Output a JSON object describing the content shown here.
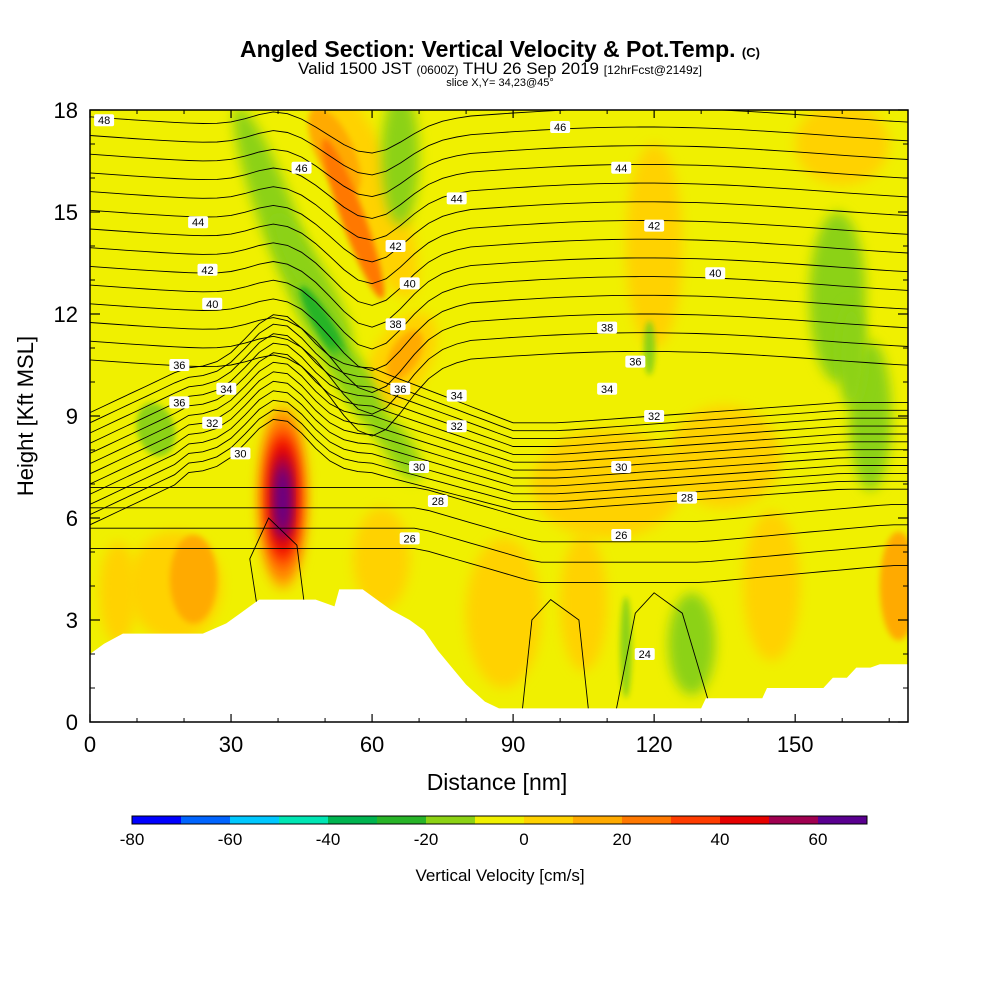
{
  "header": {
    "title": "Angled Section: Vertical Velocity & Pot.Temp.",
    "title_tag": "(C)",
    "valid_a": "Valid 1500 JST",
    "valid_b": "(0600Z)",
    "valid_c": "THU 26 Sep 2019",
    "valid_d": "[12hrFcst@2149z]",
    "slice": "slice X,Y= 34,23@45°"
  },
  "chart_data": {
    "type": "heatmap",
    "xlabel": "Distance [nm]",
    "ylabel": "Height [Kft MSL]",
    "xlim": [
      0,
      174
    ],
    "ylim": [
      0,
      18
    ],
    "x_ticks": [
      0,
      30,
      60,
      90,
      120,
      150
    ],
    "y_ticks": [
      0,
      3,
      6,
      9,
      12,
      15,
      18
    ],
    "colorbar": {
      "label": "Vertical Velocity [cm/s]",
      "ticks": [
        "-80",
        "-60",
        "-40",
        "-20",
        "0",
        "20",
        "40",
        "60"
      ],
      "levels": [
        -80,
        -70,
        -60,
        -50,
        -40,
        -30,
        -20,
        -10,
        0,
        10,
        20,
        30,
        40,
        50,
        60,
        70
      ],
      "colors": [
        "#0000ff",
        "#0064ff",
        "#00c8ff",
        "#00e6b4",
        "#00b450",
        "#28b428",
        "#8cd214",
        "#f0f000",
        "#ffd200",
        "#ffaa00",
        "#ff7800",
        "#ff3c00",
        "#e60000",
        "#a00050",
        "#5a0090"
      ]
    },
    "vv_features": [
      {
        "kind": "updraft",
        "x": 41,
        "z": 6.6,
        "peak_cm_s": 65
      },
      {
        "kind": "downdraft",
        "x": 55,
        "z": 10.6,
        "min_cm_s": -30
      },
      {
        "kind": "downdraft",
        "x": 39,
        "z": 15.5,
        "min_cm_s": -20
      },
      {
        "kind": "downdraft",
        "x": 162,
        "z": 10.5,
        "min_cm_s": -20
      },
      {
        "kind": "downdraft",
        "x": 126,
        "z": 2.3,
        "min_cm_s": -20
      },
      {
        "kind": "updraft",
        "x": 58,
        "z": 16.5,
        "peak_cm_s": 25
      }
    ],
    "theta_labels": [
      {
        "v": "48",
        "x": 3,
        "z": 17.7
      },
      {
        "v": "46",
        "x": 45,
        "z": 16.3
      },
      {
        "v": "46",
        "x": 100,
        "z": 17.5
      },
      {
        "v": "44",
        "x": 23,
        "z": 14.7
      },
      {
        "v": "44",
        "x": 78,
        "z": 15.4
      },
      {
        "v": "44",
        "x": 113,
        "z": 16.3
      },
      {
        "v": "42",
        "x": 25,
        "z": 13.3
      },
      {
        "v": "42",
        "x": 65,
        "z": 14.0
      },
      {
        "v": "42",
        "x": 120,
        "z": 14.6
      },
      {
        "v": "40",
        "x": 26,
        "z": 12.3
      },
      {
        "v": "40",
        "x": 68,
        "z": 12.9
      },
      {
        "v": "40",
        "x": 133,
        "z": 13.2
      },
      {
        "v": "38",
        "x": 65,
        "z": 11.7
      },
      {
        "v": "38",
        "x": 110,
        "z": 11.6
      },
      {
        "v": "36",
        "x": 19,
        "z": 10.5
      },
      {
        "v": "36",
        "x": 116,
        "z": 10.6
      },
      {
        "v": "36",
        "x": 66,
        "z": 9.8
      },
      {
        "v": "36",
        "x": 19,
        "z": 9.4
      },
      {
        "v": "34",
        "x": 29,
        "z": 9.8
      },
      {
        "v": "34",
        "x": 78,
        "z": 9.6
      },
      {
        "v": "34",
        "x": 110,
        "z": 9.8
      },
      {
        "v": "32",
        "x": 26,
        "z": 8.8
      },
      {
        "v": "32",
        "x": 78,
        "z": 8.7
      },
      {
        "v": "32",
        "x": 120,
        "z": 9.0
      },
      {
        "v": "30",
        "x": 32,
        "z": 7.9
      },
      {
        "v": "30",
        "x": 70,
        "z": 7.5
      },
      {
        "v": "30",
        "x": 113,
        "z": 7.5
      },
      {
        "v": "28",
        "x": 74,
        "z": 6.5
      },
      {
        "v": "28",
        "x": 127,
        "z": 6.6
      },
      {
        "v": "26",
        "x": 68,
        "z": 5.4
      },
      {
        "v": "26",
        "x": 113,
        "z": 5.5
      },
      {
        "v": "24",
        "x": 118,
        "z": 2.0
      }
    ],
    "terrain_kft": [
      [
        0,
        2.0
      ],
      [
        3,
        2.3
      ],
      [
        7,
        2.6
      ],
      [
        12,
        2.6
      ],
      [
        16,
        2.6
      ],
      [
        20,
        2.6
      ],
      [
        24,
        2.6
      ],
      [
        29,
        2.9
      ],
      [
        32,
        3.2
      ],
      [
        36,
        3.6
      ],
      [
        48,
        3.6
      ],
      [
        52,
        3.4
      ],
      [
        53,
        3.9
      ],
      [
        58,
        3.9
      ],
      [
        61,
        3.6
      ],
      [
        64,
        3.3
      ],
      [
        68,
        3.0
      ],
      [
        71,
        2.7
      ],
      [
        74,
        2.1
      ],
      [
        77,
        1.6
      ],
      [
        80,
        1.1
      ],
      [
        84,
        0.6
      ],
      [
        87,
        0.4
      ],
      [
        90,
        0.4
      ],
      [
        130,
        0.4
      ],
      [
        131,
        0.7
      ],
      [
        143,
        0.7
      ],
      [
        144,
        1.0
      ],
      [
        156,
        1.0
      ],
      [
        158,
        1.3
      ],
      [
        161,
        1.3
      ],
      [
        163,
        1.6
      ],
      [
        166,
        1.6
      ],
      [
        168,
        1.7
      ],
      [
        174,
        1.7
      ]
    ]
  }
}
